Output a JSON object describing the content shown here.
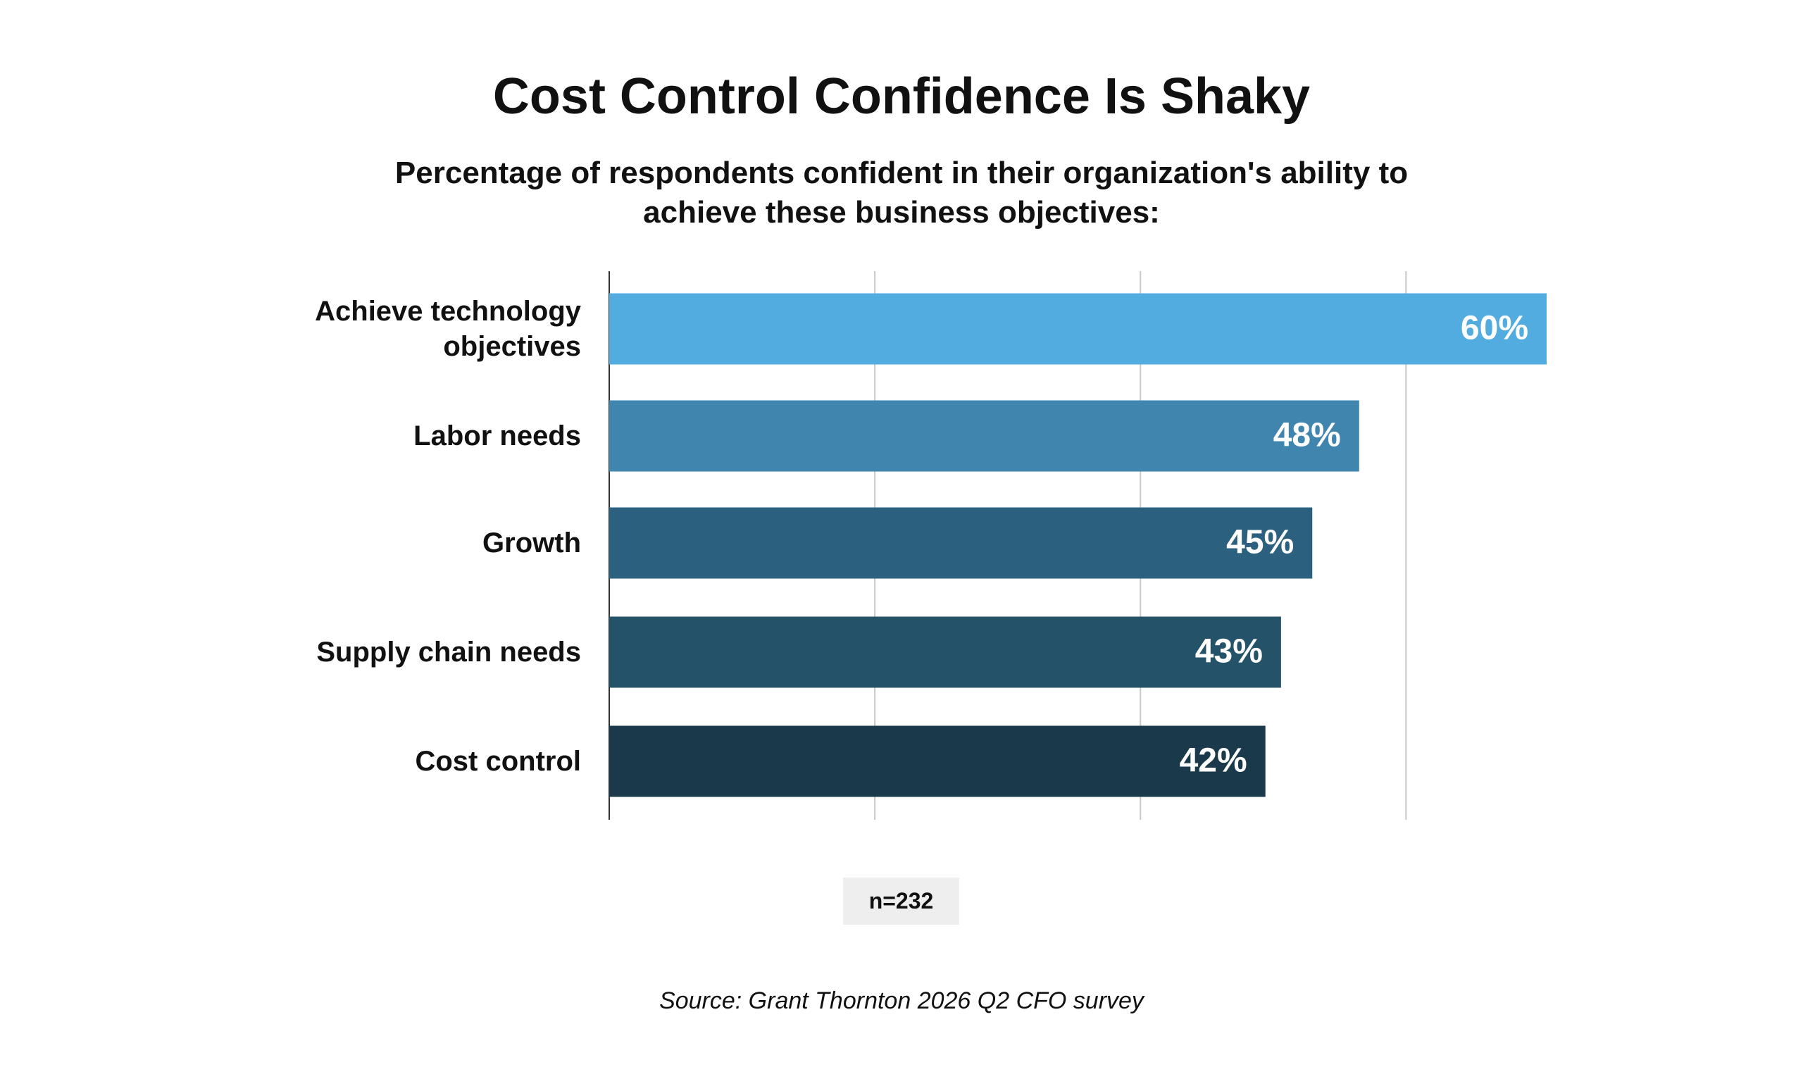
{
  "chart_data": {
    "type": "hbar",
    "title": "Cost Control Confidence Is Shaky",
    "subtitle": "Percentage of respondents confident in their organization's ability to achieve these business objectives:",
    "categories": [
      "Achieve technology objectives",
      "Labor needs",
      "Growth",
      "Supply chain needs",
      "Cost control"
    ],
    "values": [
      60,
      48,
      45,
      43,
      42
    ],
    "value_labels": [
      "60%",
      "48%",
      "45%",
      "43%",
      "42%"
    ],
    "colors": [
      "#53acdf",
      "#3f85ad",
      "#2b607f",
      "#245369",
      "#1a3a4b"
    ],
    "xlim": [
      0,
      60
    ],
    "xticks": [
      0,
      17,
      34,
      51
    ],
    "grid": true,
    "annotation": "n=232",
    "source": "Source: Grant Thornton 2026 Q2 CFO survey"
  }
}
